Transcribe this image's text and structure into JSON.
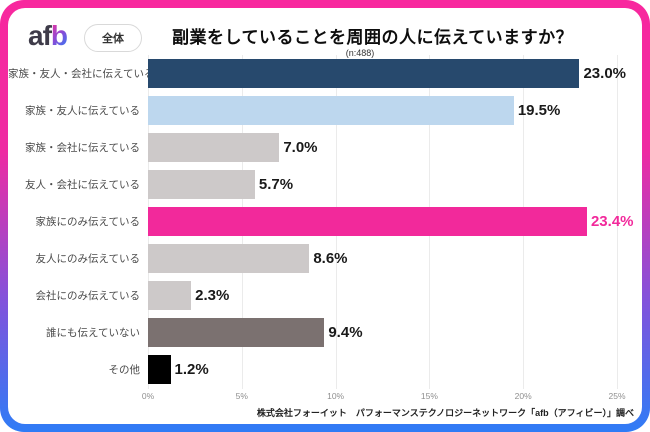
{
  "frame": {
    "border_gradient_top": "#F8289E",
    "border_gradient_bottom": "#2F7CF6"
  },
  "header": {
    "logo_af": "af",
    "logo_b": "b",
    "badge": "全体",
    "title": "副業をしていることを周囲の人に伝えていますか？",
    "sample_size": "(n:488)"
  },
  "chart_data": {
    "type": "bar",
    "orientation": "horizontal",
    "title": "副業をしていることを周囲の人に伝えていますか？",
    "sample_size": "(n:488)",
    "categories": [
      "家族・友人・会社に伝えている",
      "家族・友人に伝えている",
      "家族・会社に伝えている",
      "友人・会社に伝えている",
      "家族にのみ伝えている",
      "友人にのみ伝えている",
      "会社にのみ伝えている",
      "誰にも伝えていない",
      "その他"
    ],
    "values": [
      23.0,
      19.5,
      7.0,
      5.7,
      23.4,
      8.6,
      2.3,
      9.4,
      1.2
    ],
    "value_labels": [
      "23.0%",
      "19.5%",
      "7.0%",
      "5.7%",
      "23.4%",
      "8.6%",
      "2.3%",
      "9.4%",
      "1.2%"
    ],
    "bar_colors": [
      "#27496D",
      "#BDD7EE",
      "#CDC9C9",
      "#CDC9C9",
      "#F2299B",
      "#CDC9C9",
      "#CDC9C9",
      "#7B7170",
      "#000000"
    ],
    "value_label_colors": [
      "#1A1A1A",
      "#1A1A1A",
      "#1A1A1A",
      "#1A1A1A",
      "#F2299B",
      "#1A1A1A",
      "#1A1A1A",
      "#1A1A1A",
      "#1A1A1A"
    ],
    "xlim": [
      0,
      25
    ],
    "x_ticks": [
      "0%",
      "5%",
      "10%",
      "15%",
      "20%",
      "25%"
    ],
    "grid": true,
    "gridline_color": "#EBEBEB",
    "legend": false
  },
  "footer": {
    "source": "株式会社フォーイット　パフォーマンステクノロジーネットワーク「afb（アフィビー）」調べ"
  }
}
